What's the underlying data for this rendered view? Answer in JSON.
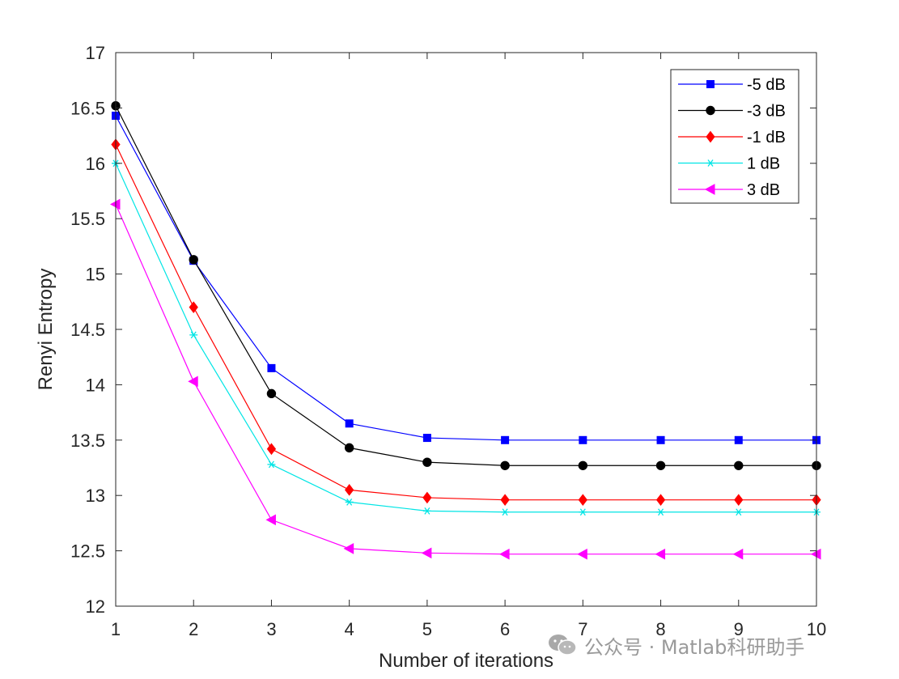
{
  "chart_data": {
    "type": "line",
    "title": "",
    "xlabel": "Number of iterations",
    "ylabel": "Renyi Entropy",
    "xlim": [
      1,
      10
    ],
    "ylim": [
      12,
      17
    ],
    "xticks": [
      1,
      2,
      3,
      4,
      5,
      6,
      7,
      8,
      9,
      10
    ],
    "yticks": [
      12,
      12.5,
      13,
      13.5,
      14,
      14.5,
      15,
      15.5,
      16,
      16.5,
      17
    ],
    "grid": false,
    "legend_position": "top-right",
    "x": [
      1,
      2,
      3,
      4,
      5,
      6,
      7,
      8,
      9,
      10
    ],
    "series": [
      {
        "name": "-5 dB",
        "color": "#0000ff",
        "marker": "square",
        "values": [
          16.43,
          15.12,
          14.15,
          13.65,
          13.52,
          13.5,
          13.5,
          13.5,
          13.5,
          13.5
        ]
      },
      {
        "name": "-3 dB",
        "color": "#000000",
        "marker": "circle",
        "values": [
          16.52,
          15.13,
          13.92,
          13.43,
          13.3,
          13.27,
          13.27,
          13.27,
          13.27,
          13.27
        ]
      },
      {
        "name": "-1 dB",
        "color": "#ff0000",
        "marker": "diamond",
        "values": [
          16.17,
          14.7,
          13.42,
          13.05,
          12.98,
          12.96,
          12.96,
          12.96,
          12.96,
          12.96
        ]
      },
      {
        "name": "1 dB",
        "color": "#00e5e5",
        "marker": "asterisk",
        "values": [
          16.0,
          14.45,
          13.28,
          12.94,
          12.86,
          12.85,
          12.85,
          12.85,
          12.85,
          12.85
        ]
      },
      {
        "name": "3 dB",
        "color": "#ff00ff",
        "marker": "triangle-left",
        "values": [
          15.63,
          14.03,
          12.78,
          12.52,
          12.48,
          12.47,
          12.47,
          12.47,
          12.47,
          12.47
        ]
      }
    ]
  },
  "watermark": {
    "text": "公众号 · Matlab科研助手",
    "icon": "wechat-icon"
  }
}
